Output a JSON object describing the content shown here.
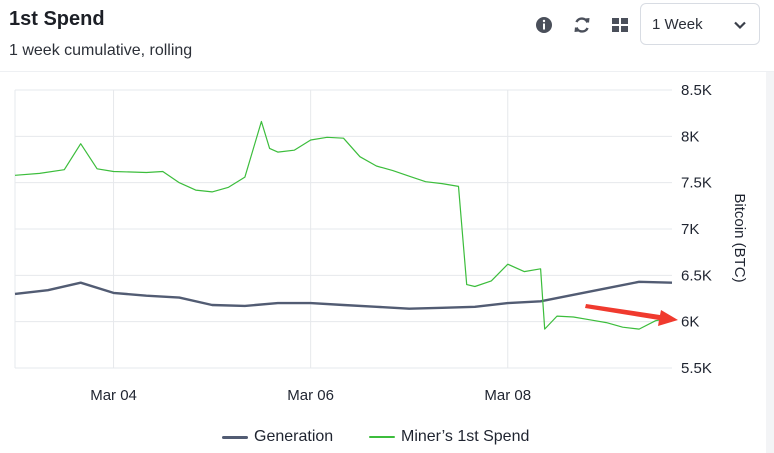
{
  "header": {
    "title": "1st Spend",
    "subtitle": "1 week cumulative, rolling"
  },
  "toolbar": {
    "icons": [
      "info-icon",
      "refresh-icon",
      "grid-icon"
    ],
    "range_select": {
      "value": "1 Week"
    }
  },
  "colors": {
    "generation": "#525c73",
    "miners_first_spend": "#3cbd3c",
    "annotation_arrow": "#f03a2e",
    "gridline": "#e6e8ec"
  },
  "chart_data": {
    "type": "line",
    "title": "",
    "xlabel": "",
    "ylabel": "Bitcoin (BTC)",
    "x_ticks": [
      "Mar 04",
      "Mar 06",
      "Mar 08"
    ],
    "y_ticks": [
      "8.5K",
      "8K",
      "7.5K",
      "7K",
      "6.5K",
      "6K",
      "5.5K"
    ],
    "xlim": [
      "2020-03-03",
      "2020-03-09 16:00"
    ],
    "ylim": [
      5500,
      8500
    ],
    "grid": true,
    "legend_position": "bottom",
    "series": [
      {
        "name": "Generation",
        "x": [
          "2020-03-03 00:00",
          "2020-03-03 08:00",
          "2020-03-03 16:00",
          "2020-03-04 00:00",
          "2020-03-04 08:00",
          "2020-03-04 16:00",
          "2020-03-05 00:00",
          "2020-03-05 08:00",
          "2020-03-05 16:00",
          "2020-03-06 00:00",
          "2020-03-06 08:00",
          "2020-03-06 16:00",
          "2020-03-07 00:00",
          "2020-03-07 08:00",
          "2020-03-07 16:00",
          "2020-03-08 00:00",
          "2020-03-08 08:00",
          "2020-03-08 16:00",
          "2020-03-09 00:00",
          "2020-03-09 08:00",
          "2020-03-09 16:00"
        ],
        "values": [
          6300,
          6340,
          6420,
          6310,
          6280,
          6260,
          6180,
          6170,
          6200,
          6200,
          6180,
          6160,
          6140,
          6150,
          6160,
          6200,
          6220,
          6290,
          6360,
          6430,
          6420
        ]
      },
      {
        "name": "Miner’s 1st Spend",
        "x": [
          "2020-03-03 00:00",
          "2020-03-03 06:00",
          "2020-03-03 12:00",
          "2020-03-03 16:00",
          "2020-03-03 20:00",
          "2020-03-04 00:00",
          "2020-03-04 08:00",
          "2020-03-04 12:00",
          "2020-03-04 16:00",
          "2020-03-04 20:00",
          "2020-03-05 00:00",
          "2020-03-05 04:00",
          "2020-03-05 08:00",
          "2020-03-05 12:00",
          "2020-03-05 14:00",
          "2020-03-05 16:00",
          "2020-03-05 20:00",
          "2020-03-06 00:00",
          "2020-03-06 04:00",
          "2020-03-06 08:00",
          "2020-03-06 12:00",
          "2020-03-06 16:00",
          "2020-03-06 20:00",
          "2020-03-07 00:00",
          "2020-03-07 04:00",
          "2020-03-07 08:00",
          "2020-03-07 12:00",
          "2020-03-07 14:00",
          "2020-03-07 16:00",
          "2020-03-07 20:00",
          "2020-03-08 00:00",
          "2020-03-08 04:00",
          "2020-03-08 08:00",
          "2020-03-08 09:00",
          "2020-03-08 12:00",
          "2020-03-08 16:00",
          "2020-03-08 20:00",
          "2020-03-09 00:00",
          "2020-03-09 04:00",
          "2020-03-09 08:00",
          "2020-03-09 12:00",
          "2020-03-09 16:00"
        ],
        "values": [
          7580,
          7600,
          7640,
          7920,
          7650,
          7620,
          7610,
          7620,
          7500,
          7420,
          7400,
          7450,
          7560,
          8160,
          7870,
          7830,
          7850,
          7960,
          7990,
          7980,
          7780,
          7680,
          7630,
          7570,
          7510,
          7490,
          7460,
          6400,
          6380,
          6440,
          6620,
          6540,
          6570,
          5920,
          6060,
          6050,
          6020,
          5990,
          5940,
          5920,
          6010,
          6040
        ]
      }
    ],
    "annotations": [
      {
        "type": "arrow",
        "points_to": "Miner’s 1st Spend line, right axis ~6K"
      }
    ]
  }
}
